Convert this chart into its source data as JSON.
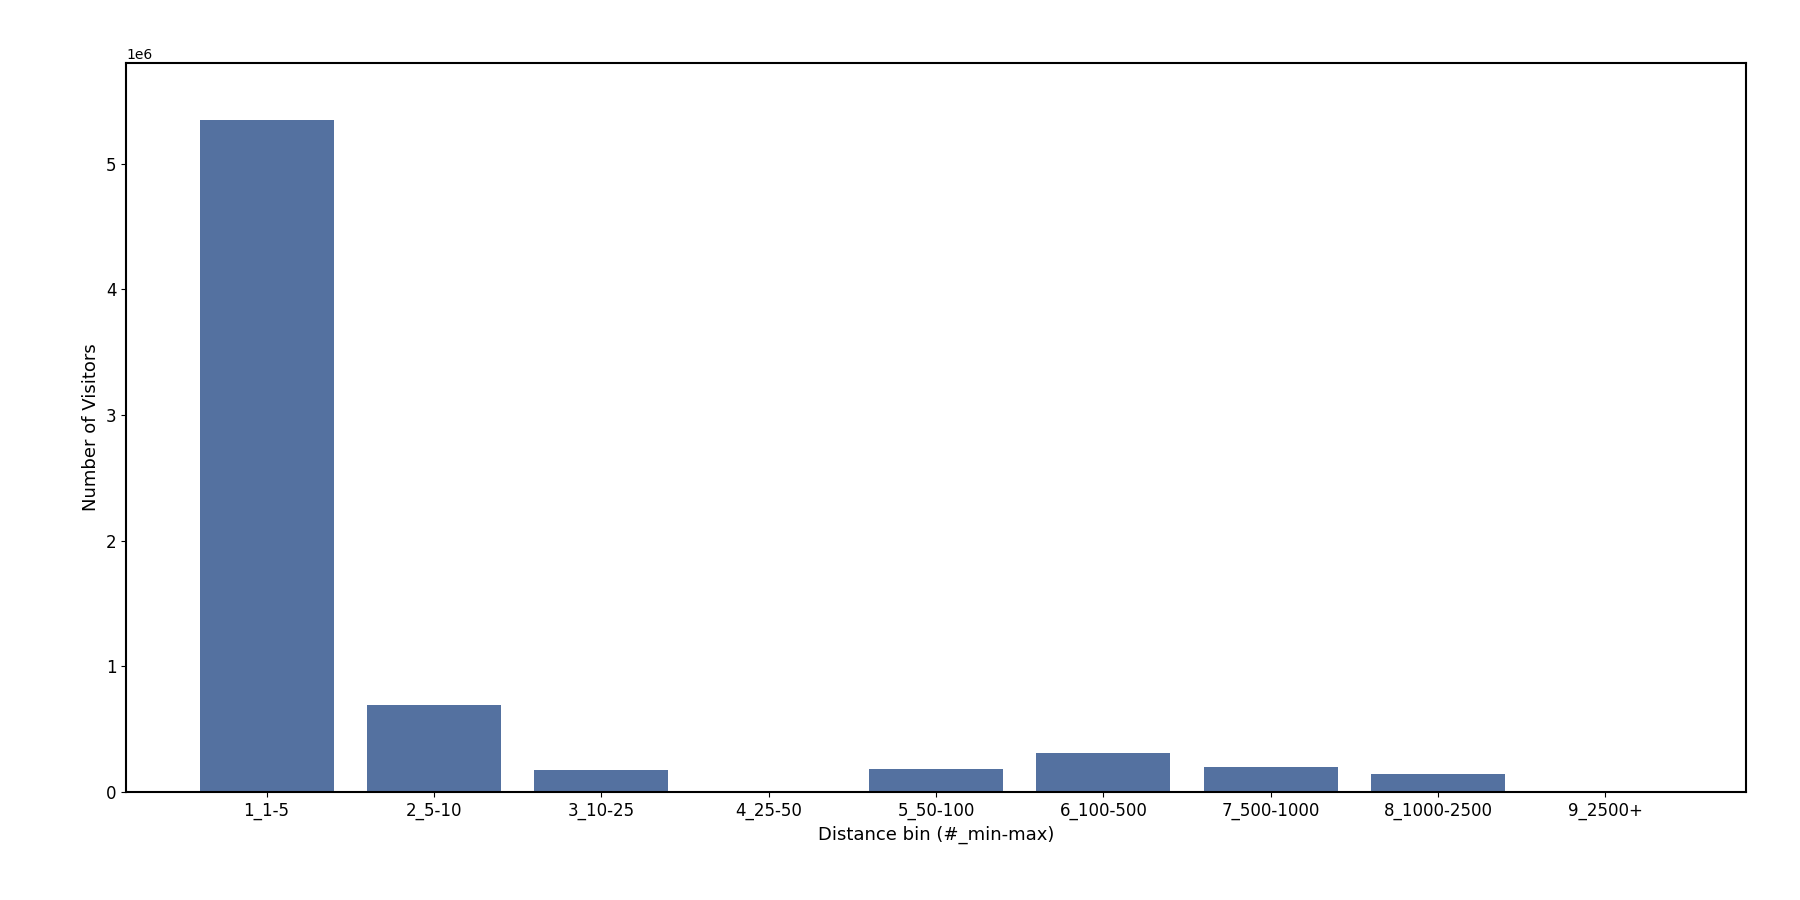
{
  "categories": [
    "1_1-5",
    "2_5-10",
    "3_10-25",
    "4_25-50",
    "5_50-100",
    "6_100-500",
    "7_500-1000",
    "8_1000-2500",
    "9_2500+"
  ],
  "values": [
    5350000,
    695000,
    175000,
    4000,
    185000,
    310000,
    195000,
    145000,
    8000
  ],
  "bar_color": "#5471a0",
  "xlabel": "Distance bin (#_min-max)",
  "ylabel": "Number of Visitors",
  "background_color": "#ffffff",
  "figsize": [
    18.0,
    9.0
  ],
  "dpi": 100,
  "bar_width": 0.8,
  "ylim": [
    0,
    5800000
  ]
}
